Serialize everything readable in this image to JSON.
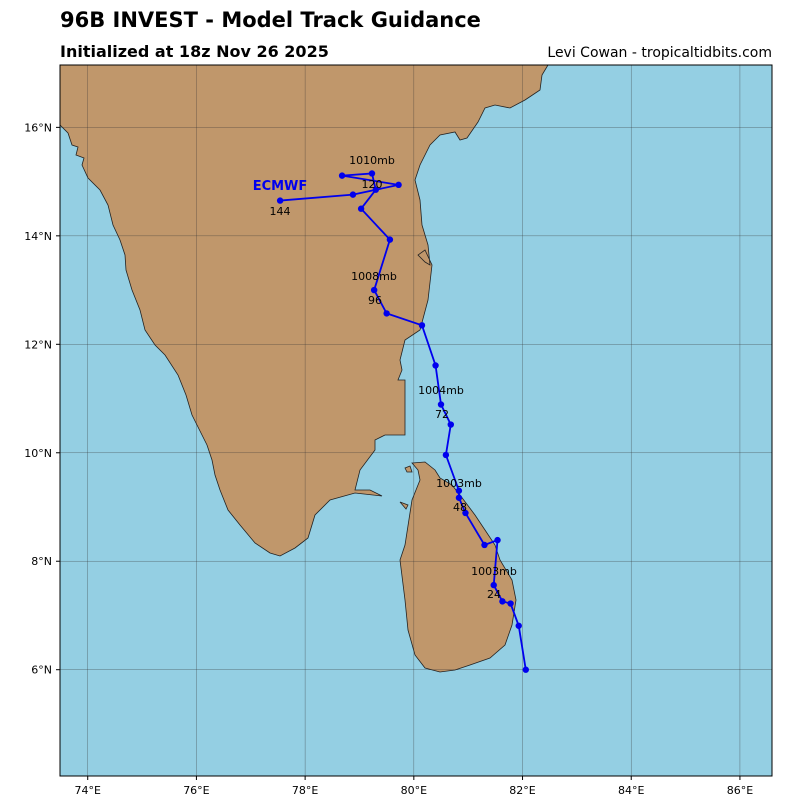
{
  "chart_data": {
    "type": "line",
    "title": "96B INVEST - Model Track Guidance",
    "subtitle": "Initialized at 18z Nov 26 2025",
    "source": "Levi Cowan - tropicaltidbits.com",
    "x": [
      82.06,
      81.93,
      81.78,
      81.63,
      81.47,
      81.54,
      81.3,
      80.95,
      80.83,
      80.83,
      80.59,
      80.68,
      80.5,
      80.4,
      80.15,
      79.5,
      79.27,
      79.56,
      79.03,
      79.3,
      79.23,
      78.68,
      79.72,
      78.88,
      77.54
    ],
    "series": [
      {
        "name": "ECMWF",
        "color": "#0000ee",
        "values": [
          6.0,
          6.81,
          7.22,
          7.26,
          7.56,
          8.39,
          8.3,
          8.89,
          9.17,
          9.3,
          9.96,
          10.52,
          10.89,
          11.61,
          12.35,
          12.57,
          13.0,
          13.93,
          14.5,
          14.85,
          15.15,
          15.11,
          14.94,
          14.76,
          14.65
        ]
      }
    ],
    "annotations": [
      "1003mb",
      "24",
      "1003mb",
      "48",
      "1004mb",
      "72",
      "1008mb",
      "96",
      "1010mb",
      "120",
      "144"
    ],
    "xlim": [
      73.49,
      86.59
    ],
    "ylim": [
      4.04,
      17.15
    ],
    "xticks": [
      {
        "value": 74,
        "label": "74°E"
      },
      {
        "value": 76,
        "label": "76°E"
      },
      {
        "value": 78,
        "label": "78°E"
      },
      {
        "value": 80,
        "label": "80°E"
      },
      {
        "value": 82,
        "label": "82°E"
      },
      {
        "value": 84,
        "label": "84°E"
      },
      {
        "value": 86,
        "label": "86°E"
      }
    ],
    "yticks": [
      {
        "value": 6,
        "label": "6°N"
      },
      {
        "value": 8,
        "label": "8°N"
      },
      {
        "value": 10,
        "label": "10°N"
      },
      {
        "value": 12,
        "label": "12°N"
      },
      {
        "value": 14,
        "label": "14°N"
      },
      {
        "value": 16,
        "label": "16°N"
      }
    ],
    "grid": true
  }
}
